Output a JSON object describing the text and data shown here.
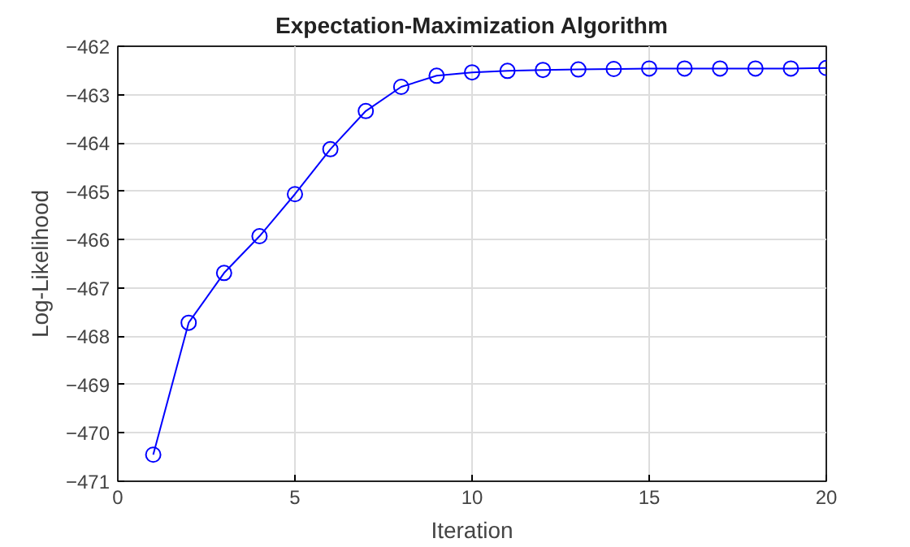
{
  "chart_data": {
    "type": "line",
    "title": "Expectation-Maximization Algorithm",
    "xlabel": "Iteration",
    "ylabel": "Log-Likelihood",
    "x": [
      1,
      2,
      3,
      4,
      5,
      6,
      7,
      8,
      9,
      10,
      11,
      12,
      13,
      14,
      15,
      16,
      17,
      18,
      19,
      20
    ],
    "series": [
      {
        "color": "#0000ff",
        "values": [
          -470.45,
          -467.72,
          -466.69,
          -465.93,
          -465.06,
          -464.13,
          -463.34,
          -462.84,
          -462.61,
          -462.54,
          -462.51,
          -462.49,
          -462.48,
          -462.47,
          -462.46,
          -462.46,
          -462.46,
          -462.46,
          -462.46,
          -462.45
        ]
      }
    ],
    "xlim": [
      0,
      20
    ],
    "ylim": [
      -471,
      -462
    ],
    "xticks": [
      0,
      5,
      10,
      15,
      20
    ],
    "yticks": [
      -471,
      -470,
      -469,
      -468,
      -467,
      -466,
      -465,
      -464,
      -463,
      -462
    ],
    "grid": true,
    "marker": "circle",
    "line_style": "solid"
  }
}
